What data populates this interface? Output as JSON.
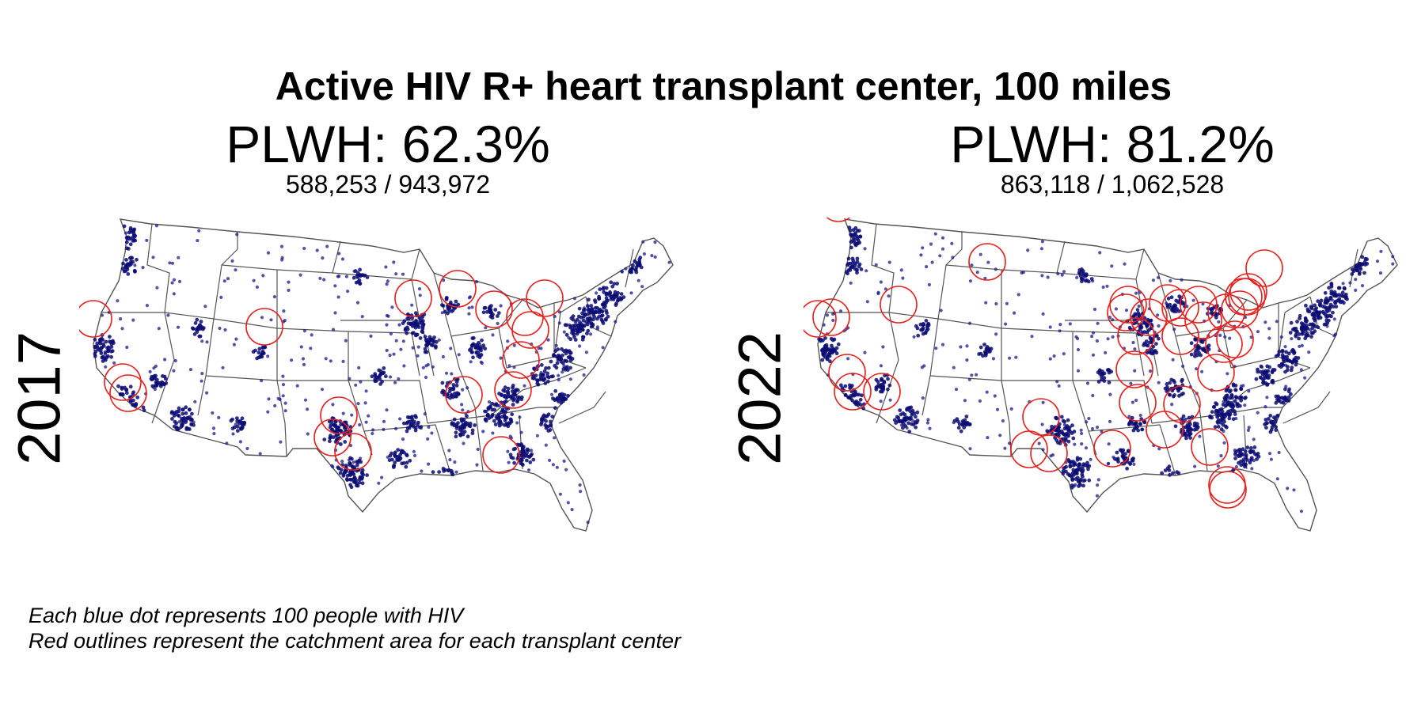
{
  "title": "Active HIV R+ heart transplant center, 100 miles",
  "panels": [
    {
      "year": "2017",
      "plwh_label": "PLWH: 62.3%",
      "counts": "588,253 / 943,972",
      "catchment_centers": 17
    },
    {
      "year": "2022",
      "plwh_label": "PLWH: 81.2%",
      "counts": "863,118 / 1,062,528",
      "catchment_centers": 36
    }
  ],
  "legend": {
    "line1": "Each blue dot represents 100 people with HIV",
    "line2": "Red outlines represent the catchment area for each transplant center"
  },
  "colors": {
    "dot": "#1b1b8a",
    "catchment": "#e8201d",
    "border": "#555555"
  }
}
